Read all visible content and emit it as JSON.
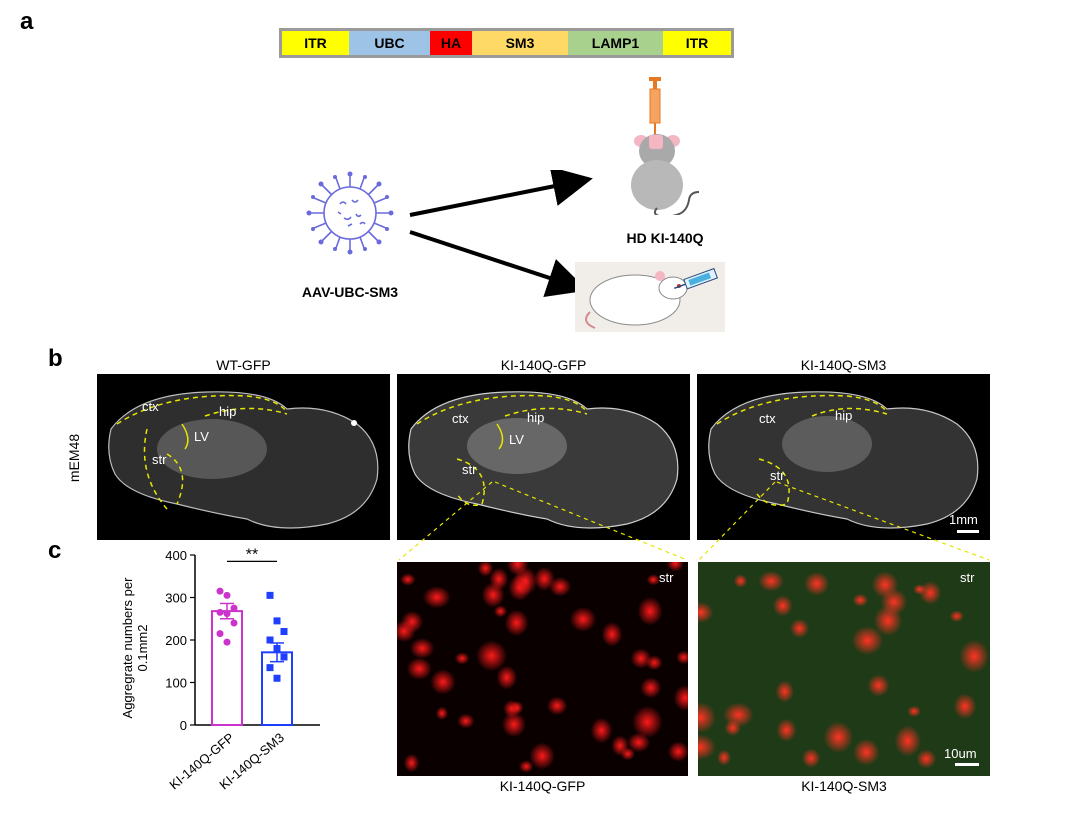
{
  "panels": {
    "a": "a",
    "b": "b",
    "c": "c"
  },
  "construct": [
    {
      "label": "ITR",
      "color": "#ffff00"
    },
    {
      "label": "UBC",
      "color": "#9dc3e6"
    },
    {
      "label": "HA",
      "color": "#ff0000"
    },
    {
      "label": "SM3",
      "color": "#ffd966"
    },
    {
      "label": "LAMP1",
      "color": "#a9d18e"
    },
    {
      "label": "ITR",
      "color": "#ffff00"
    }
  ],
  "virus_label": "AAV-UBC-SM3",
  "mouse_label": "HD KI-140Q",
  "b": {
    "row_label": "mEM48",
    "titles": [
      "WT-GFP",
      "KI-140Q-GFP",
      "KI-140Q-SM3"
    ],
    "regions": {
      "ctx": "ctx",
      "hip": "hip",
      "lv": "LV",
      "str": "str"
    },
    "scalebar": "1mm"
  },
  "c": {
    "micro_titles": [
      "KI-140Q-GFP",
      "KI-140Q-SM3"
    ],
    "str": "str",
    "scalebar": "10um"
  },
  "chart_data": {
    "type": "bar",
    "categories": [
      "KI-140Q-GFP",
      "KI-140Q-SM3"
    ],
    "values": [
      268,
      171
    ],
    "sem": [
      18,
      22
    ],
    "points": [
      [
        315,
        305,
        275,
        265,
        262,
        240,
        215,
        195
      ],
      [
        305,
        245,
        220,
        200,
        180,
        160,
        135,
        110
      ]
    ],
    "colors": [
      "#cc33cc",
      "#1f3fff"
    ],
    "ylabel": "Aggregrate numbers per 0.1mm2",
    "yticks": [
      "0",
      "100",
      "200",
      "300",
      "400"
    ],
    "ylim": [
      0,
      400
    ],
    "significance": "**"
  }
}
